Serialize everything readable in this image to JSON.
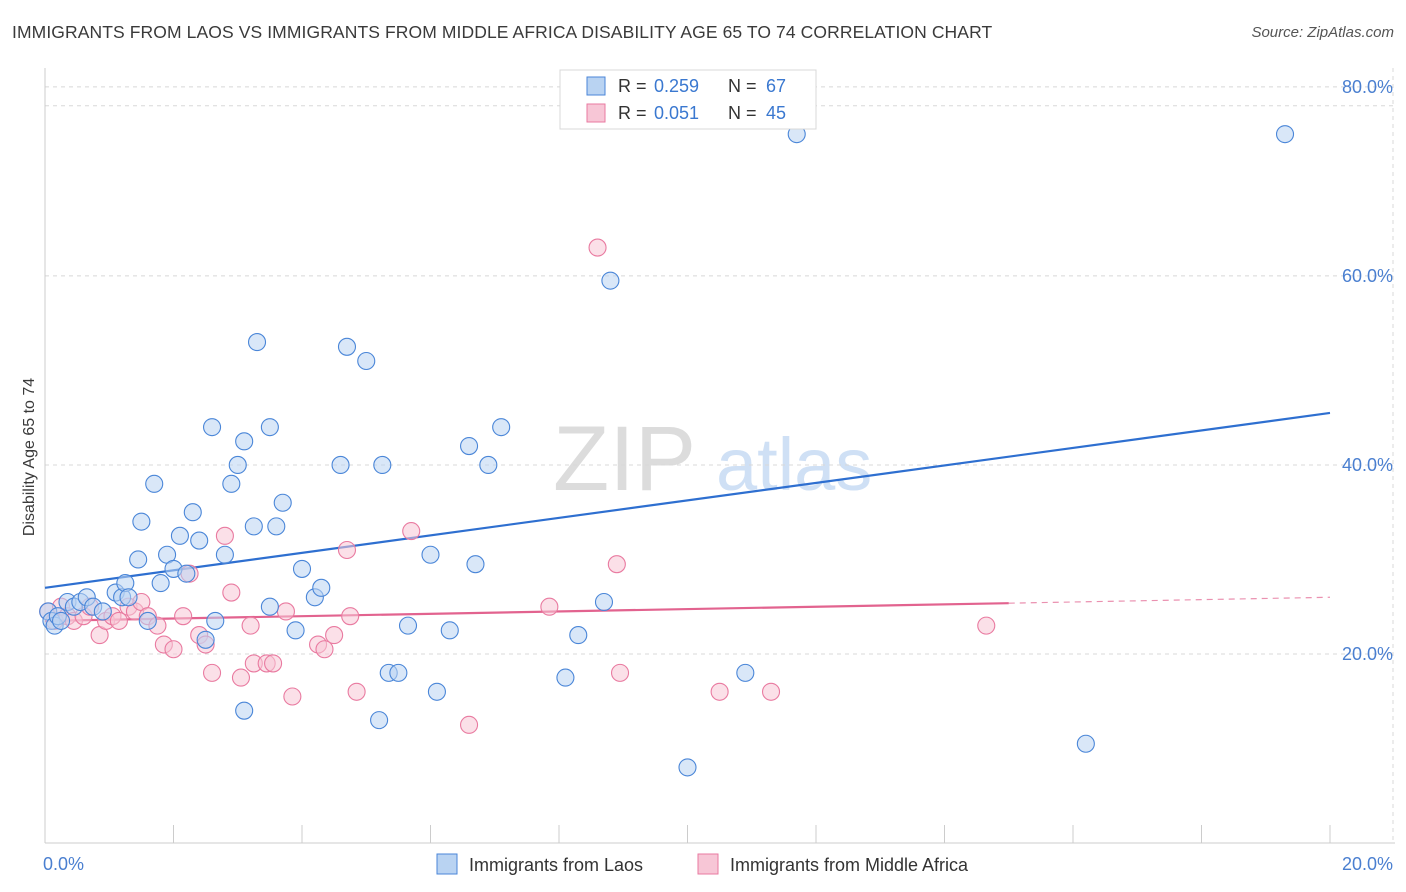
{
  "header": {
    "title": "IMMIGRANTS FROM LAOS VS IMMIGRANTS FROM MIDDLE AFRICA DISABILITY AGE 65 TO 74 CORRELATION CHART",
    "source": "Source: ZipAtlas.com"
  },
  "watermark": {
    "zip": "ZIP",
    "atlas": "atlas"
  },
  "colors": {
    "blue": "#4a86d8",
    "blue_fill": "#b9d3f2",
    "blue_line": "#2e6fd0",
    "pink": "#e97aa0",
    "pink_fill": "#f7c6d6",
    "pink_line": "#e2638f",
    "axis_label": "#4a7fd0",
    "grid": "#d8d8d8"
  },
  "chart_data": {
    "type": "scatter",
    "title": "IMMIGRANTS FROM LAOS VS IMMIGRANTS FROM MIDDLE AFRICA DISABILITY AGE 65 TO 74 CORRELATION CHART",
    "xlabel": "",
    "ylabel": "Disability Age 65 to 74",
    "xlim": [
      0,
      20
    ],
    "ylim": [
      0,
      82
    ],
    "x_tick_labels": [
      {
        "value": 0,
        "label": "0.0%"
      },
      {
        "value": 20,
        "label": "20.0%"
      }
    ],
    "y_tick_labels": [
      {
        "value": 20,
        "label": "20.0%"
      },
      {
        "value": 40,
        "label": "40.0%"
      },
      {
        "value": 60,
        "label": "60.0%"
      },
      {
        "value": 80,
        "label": "80.0%"
      }
    ],
    "legend_stats": [
      {
        "r_label": "R = ",
        "r_value": "0.259",
        "n_label": "N = ",
        "n_value": "67"
      },
      {
        "r_label": "R = ",
        "r_value": "0.051",
        "n_label": "N = ",
        "n_value": "45"
      }
    ],
    "series": [
      {
        "name": "Immigrants from Laos",
        "color": "#4a86d8",
        "trend": {
          "x0": 0,
          "y0": 27.0,
          "x1": 20,
          "y1": 45.5,
          "solid_until": 20
        },
        "points": [
          [
            0.05,
            24.5
          ],
          [
            0.1,
            23.5
          ],
          [
            0.15,
            23
          ],
          [
            0.2,
            24
          ],
          [
            0.25,
            23.5
          ],
          [
            0.35,
            25.5
          ],
          [
            0.45,
            25.0
          ],
          [
            0.55,
            25.5
          ],
          [
            0.65,
            26
          ],
          [
            0.75,
            25
          ],
          [
            0.9,
            24.5
          ],
          [
            1.1,
            26.5
          ],
          [
            1.2,
            26
          ],
          [
            1.25,
            27.5
          ],
          [
            1.3,
            26
          ],
          [
            1.45,
            30
          ],
          [
            1.5,
            34
          ],
          [
            1.6,
            23.5
          ],
          [
            1.7,
            38
          ],
          [
            1.8,
            27.5
          ],
          [
            1.9,
            30.5
          ],
          [
            2.0,
            29
          ],
          [
            2.1,
            32.5
          ],
          [
            2.2,
            28.5
          ],
          [
            2.3,
            35
          ],
          [
            2.4,
            32
          ],
          [
            2.5,
            21.5
          ],
          [
            2.6,
            44
          ],
          [
            2.65,
            23.5
          ],
          [
            2.8,
            30.5
          ],
          [
            2.9,
            38
          ],
          [
            3.0,
            40
          ],
          [
            3.1,
            42.5
          ],
          [
            3.1,
            14
          ],
          [
            3.25,
            33.5
          ],
          [
            3.3,
            53
          ],
          [
            3.5,
            44
          ],
          [
            3.5,
            25
          ],
          [
            3.6,
            33.5
          ],
          [
            3.7,
            36
          ],
          [
            3.9,
            22.5
          ],
          [
            4.0,
            29
          ],
          [
            4.2,
            26
          ],
          [
            4.3,
            27
          ],
          [
            4.6,
            40
          ],
          [
            4.7,
            52.5
          ],
          [
            5.0,
            51
          ],
          [
            5.2,
            13
          ],
          [
            5.25,
            40
          ],
          [
            5.35,
            18
          ],
          [
            5.5,
            18
          ],
          [
            5.65,
            23
          ],
          [
            6.0,
            30.5
          ],
          [
            6.1,
            16
          ],
          [
            6.3,
            22.5
          ],
          [
            6.6,
            42
          ],
          [
            6.7,
            29.5
          ],
          [
            6.9,
            40
          ],
          [
            7.1,
            44
          ],
          [
            8.1,
            17.5
          ],
          [
            8.3,
            22
          ],
          [
            8.7,
            25.5
          ],
          [
            8.8,
            59.5
          ],
          [
            10.0,
            8
          ],
          [
            10.9,
            18
          ],
          [
            11.7,
            75
          ],
          [
            16.2,
            10.5
          ],
          [
            19.3,
            75
          ]
        ]
      },
      {
        "name": "Immigrants from Middle Africa",
        "color": "#e97aa0",
        "trend": {
          "x0": 0,
          "y0": 23.5,
          "x1": 20,
          "y1": 26.0,
          "solid_until": 15
        },
        "points": [
          [
            0.05,
            24.5
          ],
          [
            0.15,
            23.5
          ],
          [
            0.25,
            25
          ],
          [
            0.35,
            24
          ],
          [
            0.45,
            23.5
          ],
          [
            0.6,
            24
          ],
          [
            0.7,
            25
          ],
          [
            0.85,
            22
          ],
          [
            0.95,
            23.5
          ],
          [
            1.05,
            24
          ],
          [
            1.15,
            23.5
          ],
          [
            1.3,
            25
          ],
          [
            1.4,
            24.5
          ],
          [
            1.5,
            25.5
          ],
          [
            1.6,
            24
          ],
          [
            1.75,
            23
          ],
          [
            1.85,
            21
          ],
          [
            2.0,
            20.5
          ],
          [
            2.15,
            24
          ],
          [
            2.25,
            28.5
          ],
          [
            2.4,
            22
          ],
          [
            2.5,
            21
          ],
          [
            2.6,
            18
          ],
          [
            2.8,
            32.5
          ],
          [
            2.9,
            26.5
          ],
          [
            3.05,
            17.5
          ],
          [
            3.2,
            23
          ],
          [
            3.25,
            19
          ],
          [
            3.45,
            19
          ],
          [
            3.55,
            19
          ],
          [
            3.75,
            24.5
          ],
          [
            3.85,
            15.5
          ],
          [
            4.25,
            21
          ],
          [
            4.35,
            20.5
          ],
          [
            4.5,
            22
          ],
          [
            4.7,
            31
          ],
          [
            4.75,
            24
          ],
          [
            4.85,
            16
          ],
          [
            5.7,
            33
          ],
          [
            6.6,
            12.5
          ],
          [
            7.85,
            25
          ],
          [
            8.6,
            63
          ],
          [
            8.9,
            29.5
          ],
          [
            8.95,
            18
          ],
          [
            10.5,
            16
          ],
          [
            11.3,
            16
          ],
          [
            14.65,
            23
          ]
        ]
      }
    ]
  }
}
